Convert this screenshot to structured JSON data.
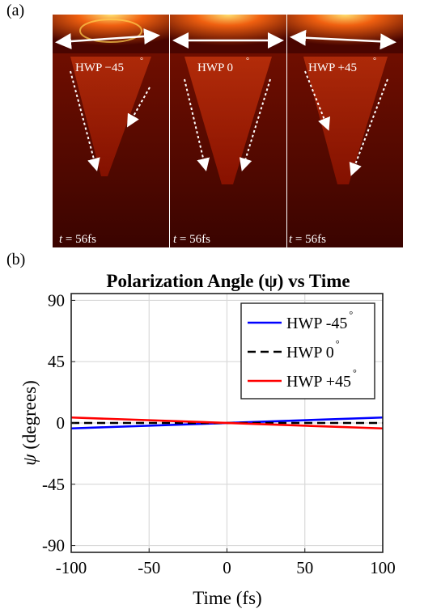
{
  "panel_a_label": "(a)",
  "panel_b_label": "(b)",
  "image_panels": [
    {
      "label": "HWP −45",
      "degree": "°",
      "time": "= 56fs",
      "time_var": "t"
    },
    {
      "label": "HWP 0",
      "degree": "°",
      "time": "= 56fs",
      "time_var": "t"
    },
    {
      "label": "HWP +45",
      "degree": "°",
      "time": "= 56fs",
      "time_var": "t"
    }
  ],
  "chart_data": {
    "type": "line",
    "title": "Polarization Angle (ψ) vs Time",
    "xlabel": "Time (fs)",
    "ylabel_symbol": "ψ",
    "ylabel_rest": " (degrees)",
    "xlim": [
      -100,
      100
    ],
    "ylim": [
      -95,
      95
    ],
    "xticks": [
      -100,
      -50,
      0,
      50,
      100
    ],
    "xtick_labels": [
      "-100",
      "-50",
      "0",
      "50",
      "100"
    ],
    "yticks": [
      90,
      45,
      0,
      -45,
      -90
    ],
    "ytick_labels": [
      "90",
      "45",
      "0",
      "-45",
      "-90"
    ],
    "grid": true,
    "legend_position": "top-right",
    "series": [
      {
        "name": "HWP -45",
        "degree": "°",
        "color": "#0000ff",
        "dash": "solid",
        "x": [
          -100,
          100
        ],
        "y": [
          -4,
          4
        ]
      },
      {
        "name": "HWP 0",
        "degree": "°",
        "color": "#000000",
        "dash": "dashed",
        "x": [
          -100,
          100
        ],
        "y": [
          0,
          0
        ]
      },
      {
        "name": "HWP +45",
        "degree": "°",
        "color": "#ff0000",
        "dash": "solid",
        "x": [
          -100,
          100
        ],
        "y": [
          4,
          -4
        ]
      }
    ]
  }
}
